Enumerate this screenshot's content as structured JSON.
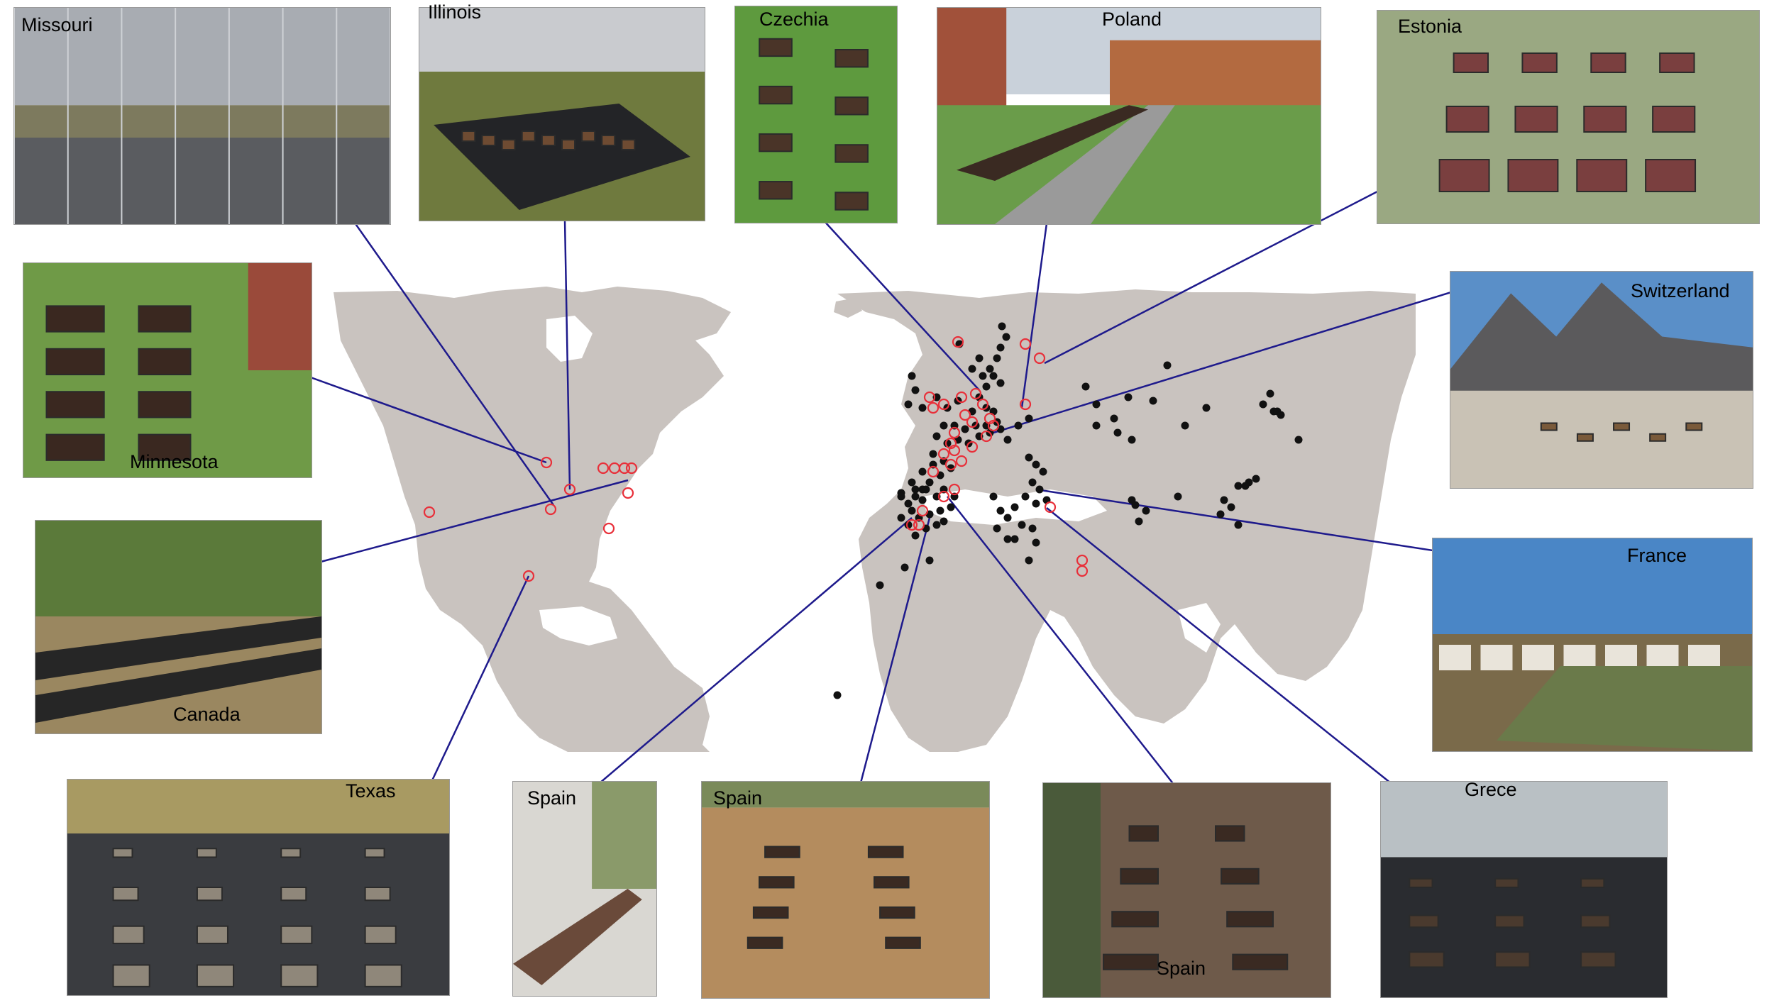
{
  "figure": {
    "photos": [
      {
        "id": "missouri",
        "label": "Missouri",
        "scene": "cage"
      },
      {
        "id": "illinois",
        "label": "Illinois",
        "scene": "cloth"
      },
      {
        "id": "czechia",
        "label": "Czechia",
        "scene": "grass"
      },
      {
        "id": "poland",
        "label": "Poland",
        "scene": "building"
      },
      {
        "id": "estonia",
        "label": "Estonia",
        "scene": "fence"
      },
      {
        "id": "minnesota",
        "label": "Minnesota",
        "scene": "garden"
      },
      {
        "id": "switzerland",
        "label": "Switzerland",
        "scene": "mountain"
      },
      {
        "id": "canada",
        "label": "Canada",
        "scene": "field"
      },
      {
        "id": "france",
        "label": "France",
        "scene": "bags"
      },
      {
        "id": "texas",
        "label": "Texas",
        "scene": "cloth"
      },
      {
        "id": "spain-1",
        "label": "Spain",
        "scene": "wall"
      },
      {
        "id": "spain-2",
        "label": "Spain",
        "scene": "dirt"
      },
      {
        "id": "spain-3",
        "label": "Spain",
        "scene": "dirt"
      },
      {
        "id": "greece",
        "label": "Grece",
        "scene": "cloth"
      }
    ],
    "colors": {
      "land": "#c9c3bf",
      "connector": "#1e1a8c",
      "site_filled": "#111111",
      "site_highlight": "#e8303a"
    },
    "site_markers": {
      "filled_dot": "black dot = site",
      "open_circle": "red open circle = photographed site"
    }
  }
}
